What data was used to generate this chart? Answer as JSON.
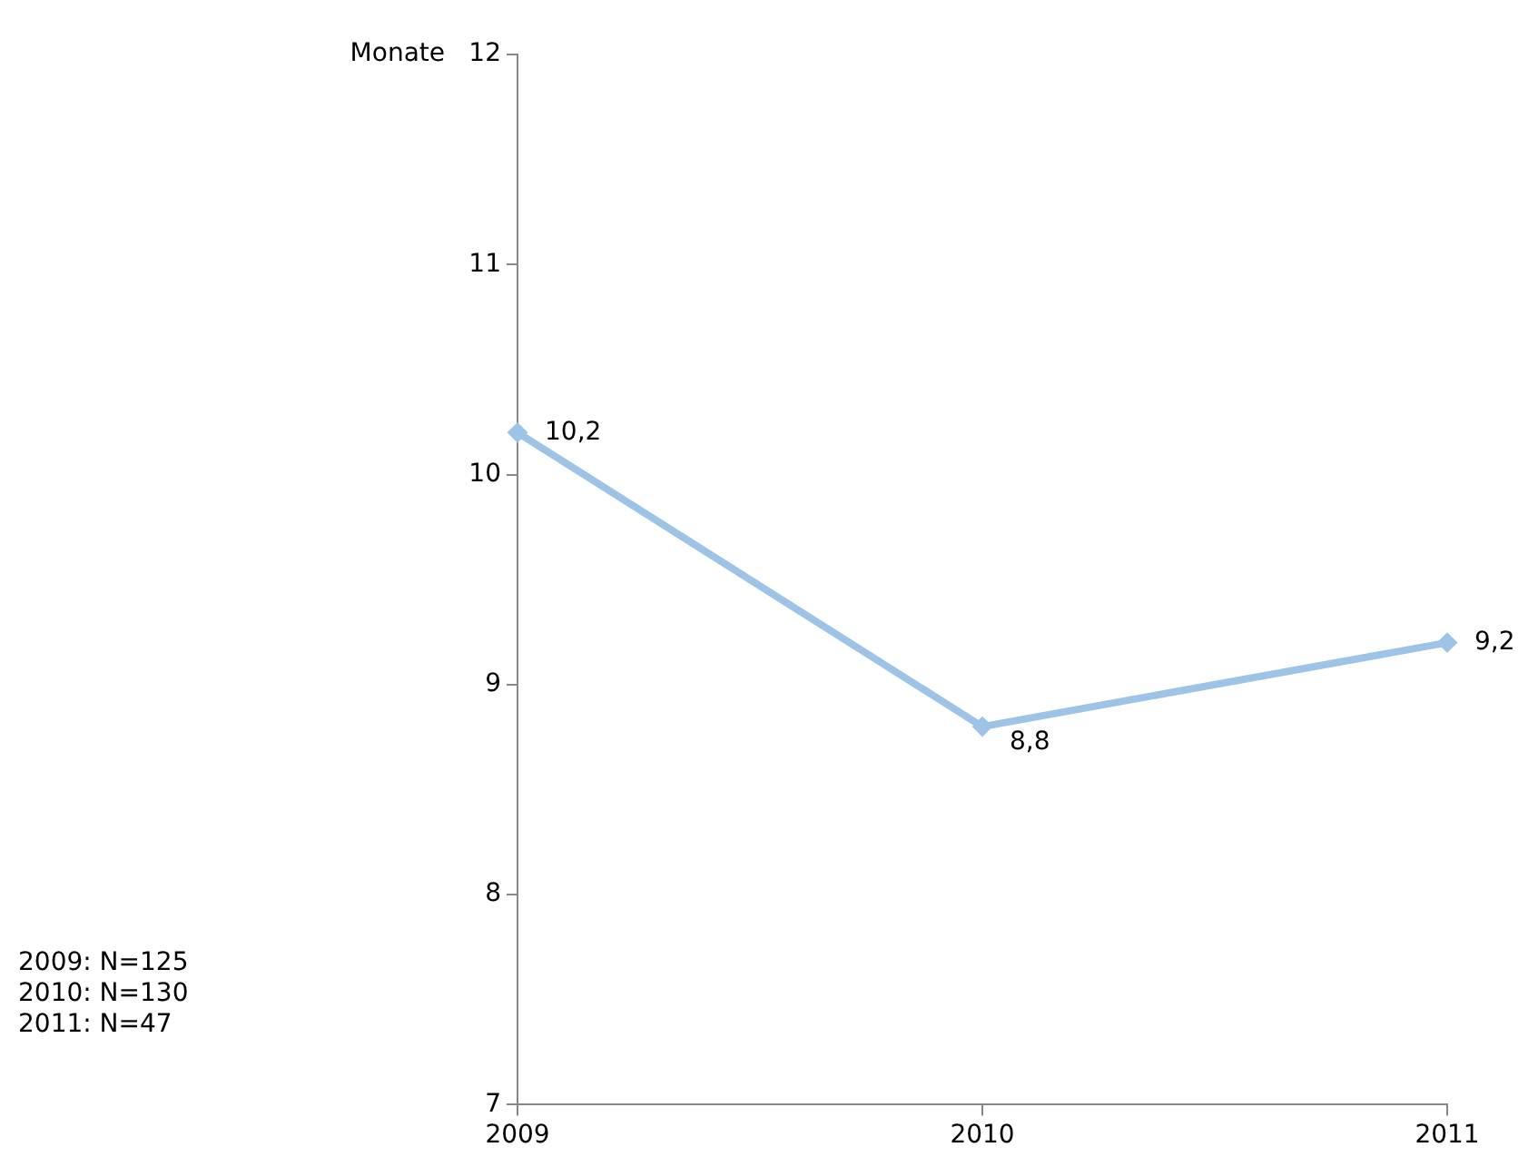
{
  "chart_data": {
    "type": "line",
    "ylabel": "Monate",
    "categories": [
      "2009",
      "2010",
      "2011"
    ],
    "series": [
      {
        "color": "#9dc3e6",
        "values": [
          10.2,
          8.8,
          9.2
        ],
        "value_labels": [
          "10,2",
          "8,8",
          "9,2"
        ]
      }
    ],
    "ylim": [
      7,
      12
    ],
    "yticks": [
      7,
      8,
      9,
      10,
      11,
      12
    ],
    "grid": false,
    "legend": false,
    "marker": "diamond",
    "line_style": "solid",
    "annotations": [
      "2009: N=125",
      "2010: N=130",
      "2011: N=47"
    ]
  }
}
